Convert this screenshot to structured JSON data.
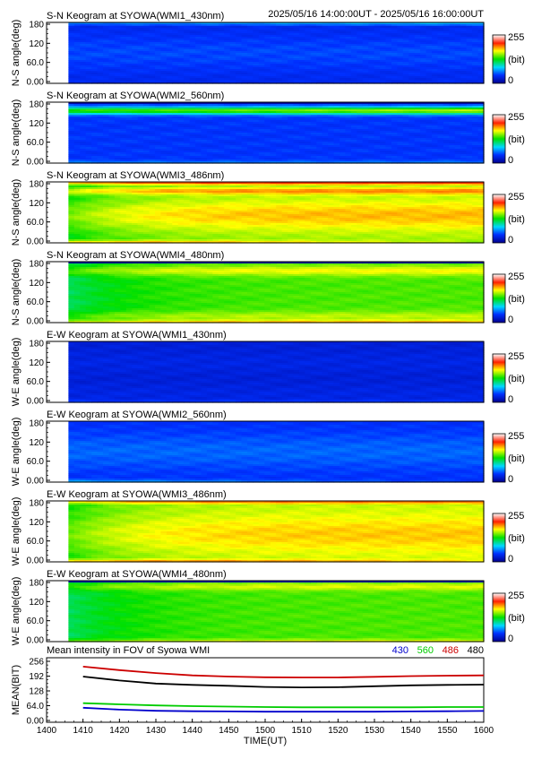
{
  "header": {
    "time_range": "2025/05/16 14:00:00UT - 2025/05/16 16:00:00UT"
  },
  "colorbar": {
    "max_label": "255",
    "unit_label": "(bit)",
    "min_label": "0"
  },
  "keograms": [
    {
      "title": "S-N Keogram at SYOWA(WMI1_430nm)",
      "ylabel": "N-S angle(deg)",
      "yticks": [
        "180",
        "120",
        "60.0",
        "0.00"
      ],
      "profile": "blue430"
    },
    {
      "title": "S-N Keogram at SYOWA(WMI2_560nm)",
      "ylabel": "N-S angle(deg)",
      "yticks": [
        "180",
        "120",
        "60.0",
        "0.00"
      ],
      "profile": "green560"
    },
    {
      "title": "S-N Keogram at SYOWA(WMI3_486nm)",
      "ylabel": "N-S angle(deg)",
      "yticks": [
        "180",
        "120",
        "60.0",
        "0.00"
      ],
      "profile": "red486"
    },
    {
      "title": "S-N Keogram at SYOWA(WMI4_480nm)",
      "ylabel": "N-S angle(deg)",
      "yticks": [
        "180",
        "120",
        "60.0",
        "0.00"
      ],
      "profile": "orange480"
    },
    {
      "title": "E-W Keogram at SYOWA(WMI1_430nm)",
      "ylabel": "W-E angle(deg)",
      "yticks": [
        "180",
        "120",
        "60.0",
        "0.00"
      ],
      "profile": "blue430ew"
    },
    {
      "title": "E-W Keogram at SYOWA(WMI2_560nm)",
      "ylabel": "W-E angle(deg)",
      "yticks": [
        "180",
        "120",
        "60.0",
        "0.00"
      ],
      "profile": "green560ew"
    },
    {
      "title": "E-W Keogram at SYOWA(WMI3_486nm)",
      "ylabel": "W-E angle(deg)",
      "yticks": [
        "180",
        "120",
        "60.0",
        "0.00"
      ],
      "profile": "red486ew"
    },
    {
      "title": "E-W Keogram at SYOWA(WMI4_480nm)",
      "ylabel": "W-E angle(deg)",
      "yticks": [
        "180",
        "120",
        "60.0",
        "0.00"
      ],
      "profile": "orange480ew"
    }
  ],
  "chart_data": {
    "type": "line",
    "title": "Mean intensity in FOV of Syowa WMI",
    "xlabel": "TIME(UT)",
    "ylabel": "MEAN(BIT)",
    "xlim": [
      1400,
      1600
    ],
    "ylim": [
      0,
      256
    ],
    "x_ticks": [
      "1400",
      "1410",
      "1420",
      "1430",
      "1440",
      "1450",
      "1500",
      "1510",
      "1520",
      "1530",
      "1540",
      "1550",
      "1600"
    ],
    "y_ticks": [
      "256",
      "192",
      "128",
      "64.0",
      "0.00"
    ],
    "x": [
      1410,
      1420,
      1430,
      1440,
      1450,
      1500,
      1510,
      1520,
      1530,
      1540,
      1550,
      1600
    ],
    "series": [
      {
        "name": "430",
        "color": "#0000cc",
        "values": [
          55,
          47,
          42,
          40,
          39,
          38,
          38,
          38,
          38,
          39,
          40,
          41
        ]
      },
      {
        "name": "560",
        "color": "#00cc00",
        "values": [
          75,
          70,
          65,
          62,
          60,
          58,
          57,
          57,
          57,
          57,
          58,
          58
        ]
      },
      {
        "name": "486",
        "color": "#cc0000",
        "values": [
          233,
          218,
          205,
          195,
          190,
          187,
          186,
          186,
          189,
          192,
          194,
          195
        ]
      },
      {
        "name": "480",
        "color": "#000000",
        "values": [
          190,
          173,
          160,
          154,
          150,
          145,
          143,
          144,
          148,
          152,
          154,
          155
        ]
      }
    ]
  }
}
